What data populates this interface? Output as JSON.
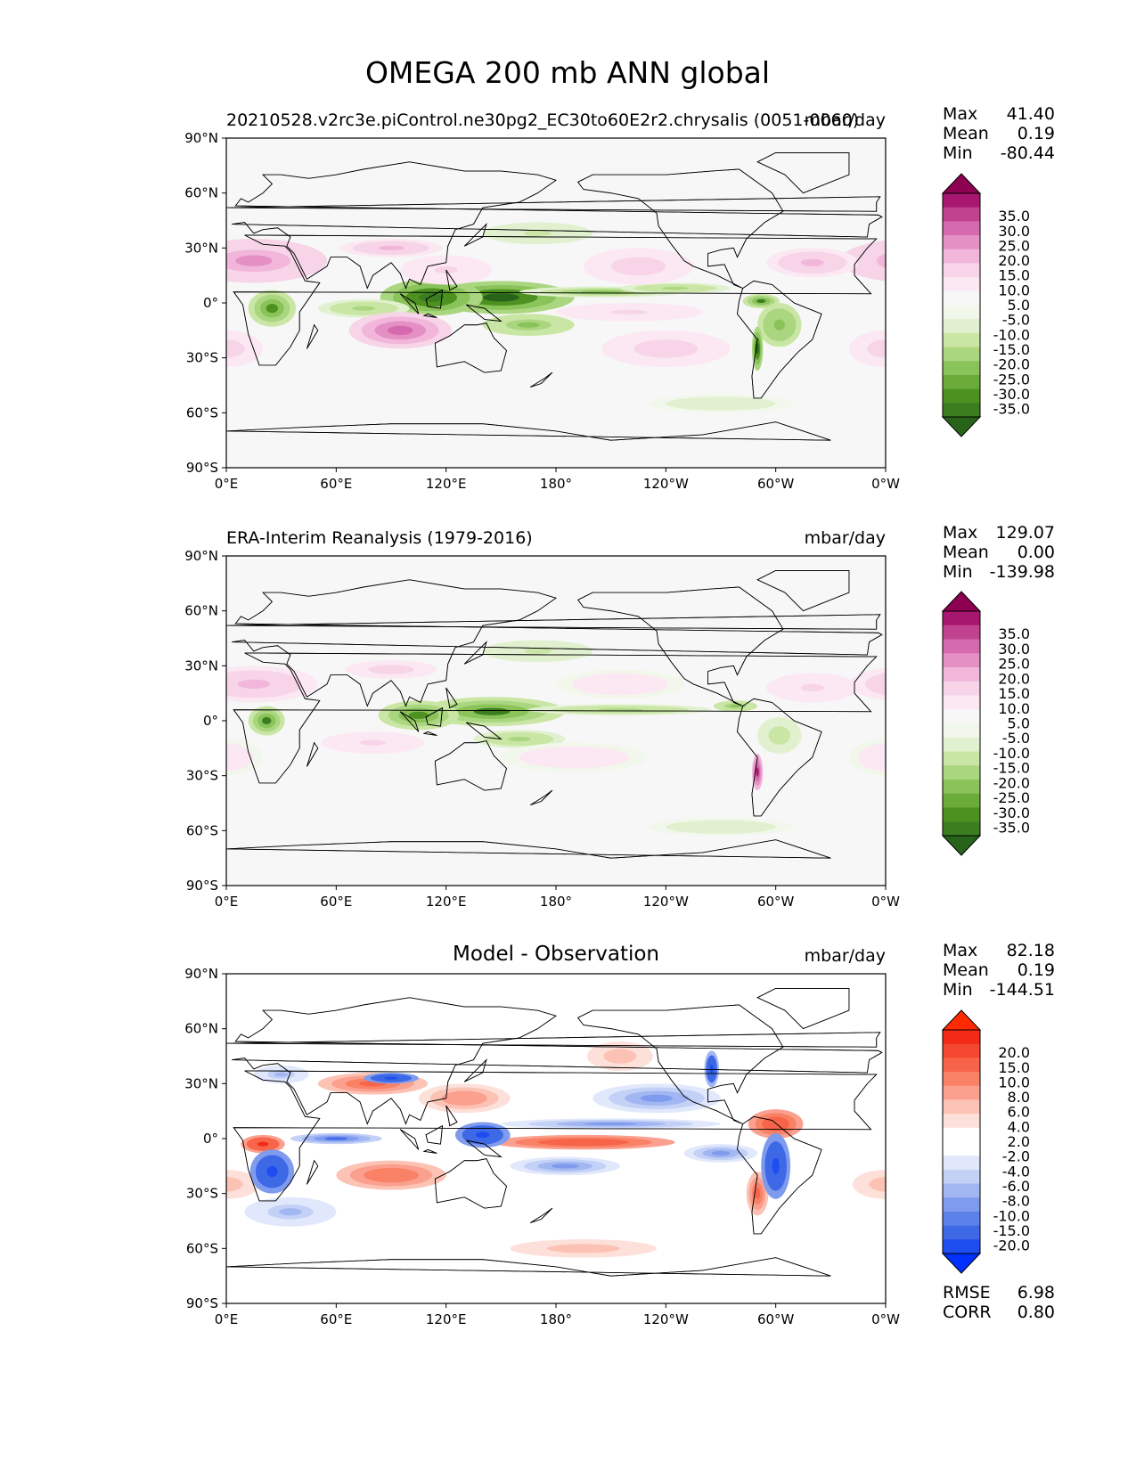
{
  "figure": {
    "title": "OMEGA 200 mb ANN global"
  },
  "colors": {
    "green_pink_levels": [
      "#276419",
      "#3b7e20",
      "#4d9221",
      "#6aab3a",
      "#8ac35a",
      "#abd680",
      "#c9e6a4",
      "#e1f1cf",
      "#f2f7ec",
      "#f7f7f7",
      "#fbe8f2",
      "#f7d4e8",
      "#f1b6da",
      "#e590c4",
      "#d56aae",
      "#c1428f",
      "#a8176f",
      "#8e0152"
    ],
    "blue_red_levels": [
      "#0031ff",
      "#1f4ef0",
      "#3d68e6",
      "#5c82ea",
      "#7e9bed",
      "#a2b6f2",
      "#c4d1f7",
      "#e1e8fb",
      "#ffffff",
      "#ffffff",
      "#fde0da",
      "#fcc3b5",
      "#fba08e",
      "#f98266",
      "#f76449",
      "#f5472f",
      "#f22a16",
      "#ff2a00"
    ],
    "coastline": "#000000",
    "frame": "#000000"
  },
  "chart_data": [
    {
      "type": "heatmap",
      "id": "test",
      "title_left": "20210528.v2rc3e.piControl.ne30pg2_EC30to60E2r2.chrysalis (0051-0060)",
      "title_right": "mbar/day",
      "xticks": [
        "0°E",
        "60°E",
        "120°E",
        "180°",
        "120°W",
        "60°W",
        "0°W"
      ],
      "yticks": [
        "90°N",
        "60°N",
        "30°N",
        "0°",
        "30°S",
        "60°S",
        "90°S"
      ],
      "xlim": [
        0,
        360
      ],
      "ylim": [
        -90,
        90
      ],
      "colormap": "green_pink_levels",
      "stats": [
        {
          "label": "Max",
          "value": "41.40"
        },
        {
          "label": "Mean",
          "value": "0.19"
        },
        {
          "label": "Min",
          "value": "-80.44"
        }
      ],
      "colorbar": {
        "labels": [
          "35.0",
          "30.0",
          "25.0",
          "20.0",
          "15.0",
          "10.0",
          "5.0",
          "-5.0",
          "-10.0",
          "-15.0",
          "-20.0",
          "-25.0",
          "-30.0",
          "-35.0"
        ],
        "levels": [
          -35,
          -30,
          -25,
          -20,
          -15,
          -10,
          -5,
          5,
          10,
          15,
          20,
          25,
          30,
          35
        ]
      },
      "features": [
        {
          "lon": 150,
          "lat": 3,
          "rx": 40,
          "ry": 9,
          "v": -36
        },
        {
          "lon": 112,
          "lat": 3,
          "rx": 28,
          "ry": 10,
          "v": -34
        },
        {
          "lon": 205,
          "lat": 6,
          "rx": 45,
          "ry": 3,
          "v": -20
        },
        {
          "lon": 245,
          "lat": 8,
          "rx": 30,
          "ry": 3,
          "v": -18
        },
        {
          "lon": 292,
          "lat": 1,
          "rx": 10,
          "ry": 4,
          "v": -30
        },
        {
          "lon": 302,
          "lat": -12,
          "rx": 12,
          "ry": 12,
          "v": -24
        },
        {
          "lon": 290,
          "lat": -25,
          "rx": 3,
          "ry": 12,
          "v": -36
        },
        {
          "lon": 25,
          "lat": -3,
          "rx": 13,
          "ry": 10,
          "v": -28
        },
        {
          "lon": 165,
          "lat": -12,
          "rx": 25,
          "ry": 6,
          "v": -22
        },
        {
          "lon": 75,
          "lat": -3,
          "rx": 25,
          "ry": 5,
          "v": -18
        },
        {
          "lon": 95,
          "lat": -15,
          "rx": 28,
          "ry": 10,
          "v": 30
        },
        {
          "lon": 15,
          "lat": 23,
          "rx": 40,
          "ry": 12,
          "v": 22
        },
        {
          "lon": 90,
          "lat": 30,
          "rx": 28,
          "ry": 5,
          "v": 18
        },
        {
          "lon": 120,
          "lat": 18,
          "rx": 25,
          "ry": 8,
          "v": 12
        },
        {
          "lon": 225,
          "lat": 20,
          "rx": 30,
          "ry": 10,
          "v": 15
        },
        {
          "lon": 320,
          "lat": 22,
          "rx": 25,
          "ry": 8,
          "v": 18
        },
        {
          "lon": 240,
          "lat": -25,
          "rx": 35,
          "ry": 10,
          "v": 15
        },
        {
          "lon": 0,
          "lat": -25,
          "rx": 20,
          "ry": 10,
          "v": 15
        },
        {
          "lon": 220,
          "lat": -5,
          "rx": 40,
          "ry": 5,
          "v": 12
        },
        {
          "lon": 170,
          "lat": 38,
          "rx": 30,
          "ry": 6,
          "v": -12
        },
        {
          "lon": 270,
          "lat": -55,
          "rx": 40,
          "ry": 5,
          "v": -8
        }
      ]
    },
    {
      "type": "heatmap",
      "id": "reference",
      "title_left": "ERA-Interim Reanalysis (1979-2016)",
      "title_right": "mbar/day",
      "xticks": [
        "0°E",
        "60°E",
        "120°E",
        "180°",
        "120°W",
        "60°W",
        "0°W"
      ],
      "yticks": [
        "90°N",
        "60°N",
        "30°N",
        "0°",
        "30°S",
        "60°S",
        "90°S"
      ],
      "xlim": [
        0,
        360
      ],
      "ylim": [
        -90,
        90
      ],
      "colormap": "green_pink_levels",
      "stats": [
        {
          "label": "Max",
          "value": "129.07"
        },
        {
          "label": "Mean",
          "value": "0.00"
        },
        {
          "label": "Min",
          "value": "-139.98"
        }
      ],
      "colorbar": {
        "labels": [
          "35.0",
          "30.0",
          "25.0",
          "20.0",
          "15.0",
          "10.0",
          "5.0",
          "-5.0",
          "-10.0",
          "-15.0",
          "-20.0",
          "-25.0",
          "-30.0",
          "-35.0"
        ],
        "levels": [
          -35,
          -30,
          -25,
          -20,
          -15,
          -10,
          -5,
          5,
          10,
          15,
          20,
          25,
          30,
          35
        ]
      },
      "features": [
        {
          "lon": 145,
          "lat": 5,
          "rx": 40,
          "ry": 8,
          "v": -30
        },
        {
          "lon": 105,
          "lat": 3,
          "rx": 22,
          "ry": 8,
          "v": -26
        },
        {
          "lon": 215,
          "lat": 6,
          "rx": 50,
          "ry": 3,
          "v": -16
        },
        {
          "lon": 278,
          "lat": 8,
          "rx": 12,
          "ry": 3,
          "v": -22
        },
        {
          "lon": 302,
          "lat": -8,
          "rx": 12,
          "ry": 10,
          "v": -14
        },
        {
          "lon": 290,
          "lat": -28,
          "rx": 3,
          "ry": 10,
          "v": 34
        },
        {
          "lon": 22,
          "lat": 0,
          "rx": 10,
          "ry": 8,
          "v": -30
        },
        {
          "lon": 160,
          "lat": -10,
          "rx": 25,
          "ry": 5,
          "v": -18
        },
        {
          "lon": 15,
          "lat": 20,
          "rx": 35,
          "ry": 10,
          "v": 18
        },
        {
          "lon": 90,
          "lat": 28,
          "rx": 25,
          "ry": 5,
          "v": 14
        },
        {
          "lon": 80,
          "lat": -12,
          "rx": 28,
          "ry": 6,
          "v": 12
        },
        {
          "lon": 190,
          "lat": -20,
          "rx": 40,
          "ry": 8,
          "v": 10
        },
        {
          "lon": 215,
          "lat": 20,
          "rx": 35,
          "ry": 8,
          "v": 10
        },
        {
          "lon": 320,
          "lat": 18,
          "rx": 25,
          "ry": 8,
          "v": 12
        },
        {
          "lon": 0,
          "lat": -20,
          "rx": 20,
          "ry": 10,
          "v": 10
        },
        {
          "lon": 170,
          "lat": 38,
          "rx": 30,
          "ry": 6,
          "v": -12
        },
        {
          "lon": 270,
          "lat": -58,
          "rx": 40,
          "ry": 5,
          "v": -8
        }
      ]
    },
    {
      "type": "heatmap",
      "id": "difference",
      "title_center": "Model - Observation",
      "title_right": "mbar/day",
      "xticks": [
        "0°E",
        "60°E",
        "120°E",
        "180°",
        "120°W",
        "60°W",
        "0°W"
      ],
      "yticks": [
        "90°N",
        "60°N",
        "30°N",
        "0°",
        "30°S",
        "60°S",
        "90°S"
      ],
      "xlim": [
        0,
        360
      ],
      "ylim": [
        -90,
        90
      ],
      "colormap": "blue_red_levels",
      "stats": [
        {
          "label": "Max",
          "value": "82.18"
        },
        {
          "label": "Mean",
          "value": "0.19"
        },
        {
          "label": "Min",
          "value": "-144.51"
        }
      ],
      "colorbar": {
        "labels": [
          "20.0",
          "15.0",
          "10.0",
          "8.0",
          "6.0",
          "4.0",
          "2.0",
          "-2.0",
          "-4.0",
          "-6.0",
          "-8.0",
          "-10.0",
          "-15.0",
          "-20.0"
        ],
        "levels": [
          -20,
          -15,
          -10,
          -8,
          -6,
          -4,
          -2,
          2,
          4,
          6,
          8,
          10,
          15,
          20
        ]
      },
      "extra_stats": [
        {
          "label": "RMSE",
          "value": "6.98"
        },
        {
          "label": "CORR",
          "value": "0.80"
        }
      ],
      "features": [
        {
          "lon": 195,
          "lat": -2,
          "rx": 50,
          "ry": 4,
          "v": 14
        },
        {
          "lon": 20,
          "lat": -3,
          "rx": 12,
          "ry": 5,
          "v": 16
        },
        {
          "lon": 90,
          "lat": -20,
          "rx": 30,
          "ry": 8,
          "v": 10
        },
        {
          "lon": 80,
          "lat": 30,
          "rx": 30,
          "ry": 6,
          "v": 12
        },
        {
          "lon": 130,
          "lat": 22,
          "rx": 25,
          "ry": 8,
          "v": 8
        },
        {
          "lon": 300,
          "lat": 8,
          "rx": 15,
          "ry": 8,
          "v": 14
        },
        {
          "lon": 290,
          "lat": -30,
          "rx": 6,
          "ry": 12,
          "v": 12
        },
        {
          "lon": 215,
          "lat": 45,
          "rx": 18,
          "ry": 8,
          "v": 6
        },
        {
          "lon": 0,
          "lat": -25,
          "rx": 18,
          "ry": 8,
          "v": 6
        },
        {
          "lon": 140,
          "lat": 2,
          "rx": 15,
          "ry": 7,
          "v": -18
        },
        {
          "lon": 25,
          "lat": -18,
          "rx": 12,
          "ry": 12,
          "v": -18
        },
        {
          "lon": 60,
          "lat": 0,
          "rx": 25,
          "ry": 3,
          "v": -10
        },
        {
          "lon": 90,
          "lat": 33,
          "rx": 15,
          "ry": 3,
          "v": -18
        },
        {
          "lon": 300,
          "lat": -15,
          "rx": 8,
          "ry": 18,
          "v": -18
        },
        {
          "lon": 235,
          "lat": 22,
          "rx": 35,
          "ry": 8,
          "v": -8
        },
        {
          "lon": 210,
          "lat": 8,
          "rx": 60,
          "ry": 3,
          "v": -8
        },
        {
          "lon": 185,
          "lat": -15,
          "rx": 30,
          "ry": 5,
          "v": -8
        },
        {
          "lon": 270,
          "lat": -8,
          "rx": 20,
          "ry": 5,
          "v": -8
        },
        {
          "lon": 30,
          "lat": 35,
          "rx": 15,
          "ry": 5,
          "v": -6
        },
        {
          "lon": 35,
          "lat": -40,
          "rx": 25,
          "ry": 8,
          "v": -6
        },
        {
          "lon": 265,
          "lat": 38,
          "rx": 4,
          "ry": 10,
          "v": -16
        },
        {
          "lon": 195,
          "lat": -60,
          "rx": 40,
          "ry": 5,
          "v": 6
        }
      ]
    }
  ]
}
